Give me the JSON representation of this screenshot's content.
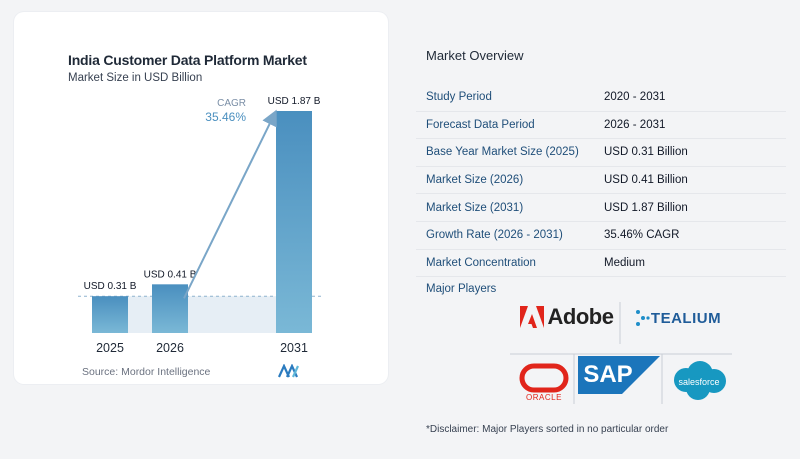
{
  "chart_data": {
    "type": "bar",
    "title": "India Customer Data Platform Market",
    "subtitle": "Market Size in USD Billion",
    "categories": [
      "2025",
      "2026",
      "2031"
    ],
    "values": [
      0.31,
      0.41,
      1.87
    ],
    "data_labels": [
      "USD 0.31 B",
      "USD 0.41 B",
      "USD 1.87 B"
    ],
    "cagr_label": "CAGR",
    "cagr_value": "35.46%",
    "colors": {
      "bar_light": "#7ab8d6",
      "bar_dark": "#4a8fbf",
      "arrow": "#7aa6c8",
      "baseline_fill": "#dbe7f1"
    },
    "grid": false
  },
  "source": "Source:  Mordor Intelligence",
  "overview": {
    "title": "Market Overview",
    "rows": [
      {
        "key": "Study Period",
        "value": "2020 - 2031"
      },
      {
        "key": "Forecast Data Period",
        "value": "2026 - 2031"
      },
      {
        "key": "Base Year Market Size (2025)",
        "value": "USD 0.31 Billion"
      },
      {
        "key": "Market Size (2026)",
        "value": "USD 0.41 Billion"
      },
      {
        "key": "Market Size (2031)",
        "value": "USD 1.87 Billion"
      },
      {
        "key": "Growth Rate (2026 - 2031)",
        "value": "35.46% CAGR"
      },
      {
        "key": "Market Concentration",
        "value": "Medium"
      }
    ]
  },
  "players": {
    "label": "Major Players",
    "logos": [
      {
        "name": "Adobe",
        "text": "Adobe",
        "color": "#e1251b"
      },
      {
        "name": "Tealium",
        "text": "TEALIUM",
        "color": "#1f5c99"
      },
      {
        "name": "Oracle",
        "text": "ORACLE",
        "color": "#e1251b"
      },
      {
        "name": "SAP",
        "text": "SAP",
        "color": "#1b75bb"
      },
      {
        "name": "Salesforce",
        "text": "salesforce",
        "color": "#1798c1"
      }
    ]
  },
  "disclaimer": "*Disclaimer: Major Players sorted in no particular order"
}
